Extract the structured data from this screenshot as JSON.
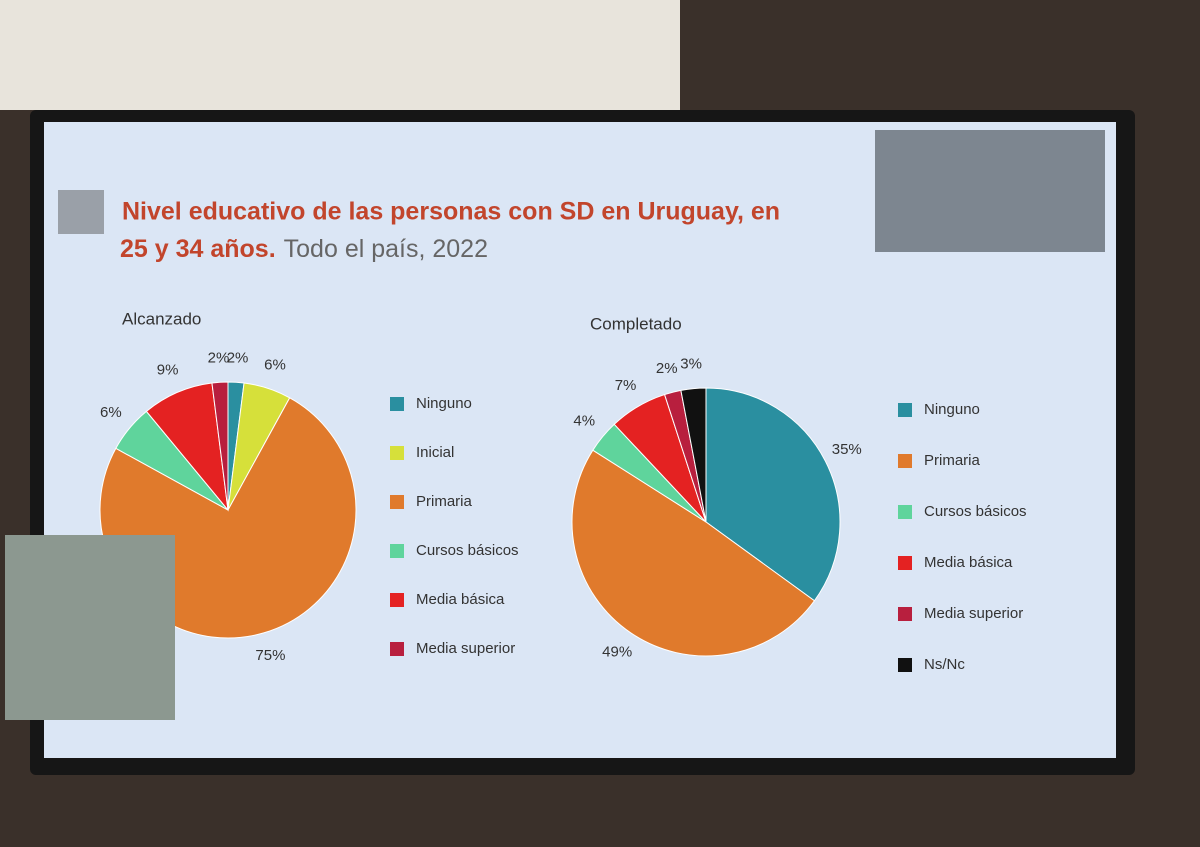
{
  "slide": {
    "title": "Nivel educativo de las personas con SD en Uruguay, en",
    "title_line2": "25 y 34 años.",
    "subtitle": "Todo el país, 2022"
  },
  "chart_data": [
    {
      "type": "pie",
      "title": "Alcanzado",
      "categories": [
        "Ninguno",
        "Inicial",
        "Primaria",
        "Cursos básicos",
        "Media básica",
        "Media superior"
      ],
      "values": [
        2,
        6,
        75,
        6,
        9,
        2
      ],
      "value_labels": [
        "2%",
        "6%",
        "75%",
        "6%",
        "9%",
        "2%"
      ],
      "colors": [
        "#2a8fa0",
        "#d6e03a",
        "#e07a2c",
        "#5fd49c",
        "#e42222",
        "#b81f3e"
      ]
    },
    {
      "type": "pie",
      "title": "Completado",
      "categories": [
        "Ninguno",
        "Primaria",
        "Cursos básicos",
        "Media básica",
        "Media superior",
        "Ns/Nc"
      ],
      "values": [
        35,
        49,
        4,
        7,
        2,
        3
      ],
      "value_labels": [
        "35%",
        "49%",
        "4%",
        "7%",
        "2%",
        "3%"
      ],
      "colors": [
        "#2a8fa0",
        "#e07a2c",
        "#5fd49c",
        "#e42222",
        "#b81f3e",
        "#111111"
      ]
    }
  ]
}
